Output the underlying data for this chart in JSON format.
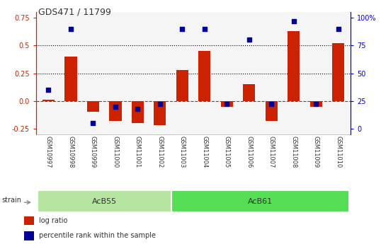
{
  "title": "GDS471 / 11799",
  "samples": [
    "GSM10997",
    "GSM10998",
    "GSM10999",
    "GSM11000",
    "GSM11001",
    "GSM11002",
    "GSM11003",
    "GSM11004",
    "GSM11005",
    "GSM11006",
    "GSM11007",
    "GSM11008",
    "GSM11009",
    "GSM11010"
  ],
  "log_ratio": [
    0.01,
    0.4,
    -0.1,
    -0.18,
    -0.2,
    -0.22,
    0.28,
    0.45,
    -0.05,
    0.15,
    -0.18,
    0.63,
    -0.05,
    0.52
  ],
  "percentile": [
    0.35,
    0.9,
    0.05,
    0.2,
    0.18,
    0.22,
    0.9,
    0.9,
    0.22,
    0.8,
    0.22,
    0.97,
    0.22,
    0.9
  ],
  "groups": [
    {
      "label": "AcB55",
      "start": 0,
      "end": 5
    },
    {
      "label": "AcB61",
      "start": 6,
      "end": 13
    }
  ],
  "group_colors": [
    "#b5e5a0",
    "#55dd55"
  ],
  "bar_color": "#cc2200",
  "square_color": "#000099",
  "ylim": [
    -0.3,
    0.8
  ],
  "yticks_left": [
    -0.25,
    0.0,
    0.25,
    0.5,
    0.75
  ],
  "right_tick_positions": [
    -0.25,
    0.0,
    0.25,
    0.5,
    0.75
  ],
  "right_tick_labels": [
    "0",
    "25",
    "50",
    "75",
    "100%"
  ],
  "hlines": [
    0.25,
    0.5
  ],
  "dashed_zero_color": "#cc2200",
  "plot_bg": "#f5f5f5",
  "label_bg": "#cccccc",
  "left_axis_color": "#cc2200",
  "right_axis_color": "#0000cc",
  "legend_entries": [
    "log ratio",
    "percentile rank within the sample"
  ],
  "strain_label": "strain",
  "bar_width": 0.55
}
